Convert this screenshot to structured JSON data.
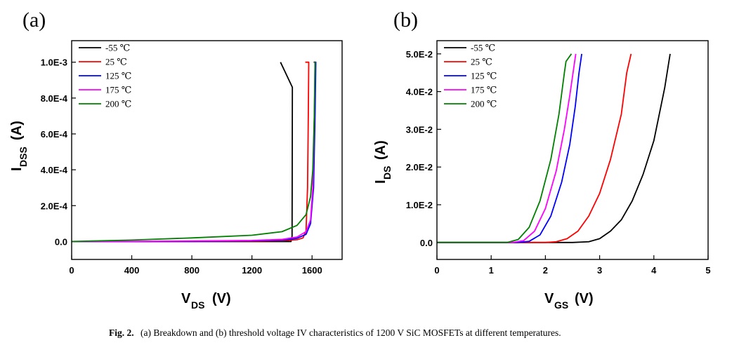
{
  "chart_data": [
    {
      "panel": "(a)",
      "type": "line",
      "xlabel": {
        "main": "V",
        "sub": "DS",
        "unit": "(V)"
      },
      "ylabel": {
        "main": "I",
        "sub": "DSS",
        "unit": "(A)"
      },
      "xlim": [
        0,
        1800
      ],
      "ylim": [
        -0.0001,
        0.00112
      ],
      "x_ticks": [
        0,
        400,
        800,
        1200,
        1600
      ],
      "x_tick_labels": [
        "0",
        "400",
        "800",
        "1200",
        "1600"
      ],
      "y_ticks": [
        0,
        0.0002,
        0.0004,
        0.0006,
        0.0008,
        0.001
      ],
      "y_tick_labels": [
        "0.0",
        "2.0E-4",
        "4.0E-4",
        "6.0E-4",
        "8.0E-4",
        "1.0E-3"
      ],
      "legend_position": "top-left",
      "series": [
        {
          "name": "-55 ℃",
          "color": "#000000",
          "points": [
            [
              0,
              0
            ],
            [
              400,
              0
            ],
            [
              800,
              0
            ],
            [
              1200,
              0
            ],
            [
              1460,
              0
            ],
            [
              1467,
              3e-05
            ],
            [
              1468,
              0.0004
            ],
            [
              1469,
              0.00086
            ],
            [
              1390,
              0.001
            ]
          ]
        },
        {
          "name": "25 ℃",
          "color": "#ff0000",
          "points": [
            [
              0,
              0
            ],
            [
              400,
              0
            ],
            [
              800,
              0
            ],
            [
              1200,
              2e-06
            ],
            [
              1400,
              5e-06
            ],
            [
              1500,
              1e-05
            ],
            [
              1540,
              2e-05
            ],
            [
              1560,
              6e-05
            ],
            [
              1570,
              0.0003
            ],
            [
              1575,
              0.0007
            ],
            [
              1578,
              0.001
            ],
            [
              1555,
              0.001
            ]
          ]
        },
        {
          "name": "125 ℃",
          "color": "#0000ff",
          "points": [
            [
              0,
              0
            ],
            [
              400,
              0
            ],
            [
              800,
              1e-06
            ],
            [
              1200,
              4e-06
            ],
            [
              1400,
              8e-06
            ],
            [
              1500,
              1.8e-05
            ],
            [
              1560,
              4e-05
            ],
            [
              1590,
              0.0001
            ],
            [
              1610,
              0.0003
            ],
            [
              1620,
              0.0007
            ],
            [
              1625,
              0.001
            ],
            [
              1615,
              0.001
            ]
          ]
        },
        {
          "name": "175 ℃",
          "color": "#ff00ff",
          "points": [
            [
              0,
              0
            ],
            [
              400,
              1e-06
            ],
            [
              800,
              3e-06
            ],
            [
              1200,
              6e-06
            ],
            [
              1400,
              1.2e-05
            ],
            [
              1500,
              2.5e-05
            ],
            [
              1560,
              5.5e-05
            ],
            [
              1590,
              0.00012
            ],
            [
              1605,
              0.0003
            ],
            [
              1615,
              0.0007
            ],
            [
              1620,
              0.001
            ],
            [
              1610,
              0.001
            ]
          ]
        },
        {
          "name": "200 ℃",
          "color": "#008000",
          "points": [
            [
              0,
              0
            ],
            [
              400,
              8e-06
            ],
            [
              800,
              2e-05
            ],
            [
              1200,
              3.5e-05
            ],
            [
              1400,
              5.5e-05
            ],
            [
              1500,
              9e-05
            ],
            [
              1560,
              0.00015
            ],
            [
              1590,
              0.00025
            ],
            [
              1605,
              0.0004
            ],
            [
              1615,
              0.0007
            ],
            [
              1620,
              0.001
            ],
            [
              1612,
              0.001
            ]
          ]
        }
      ]
    },
    {
      "panel": "(b)",
      "type": "line",
      "xlabel": {
        "main": "V",
        "sub": "GS",
        "unit": "(V)"
      },
      "ylabel": {
        "main": "I",
        "sub": "DS",
        "unit": "(A)"
      },
      "xlim": [
        0,
        5
      ],
      "ylim": [
        -0.0045,
        0.0535
      ],
      "x_ticks": [
        0,
        1,
        2,
        3,
        4,
        5
      ],
      "x_tick_labels": [
        "0",
        "1",
        "2",
        "3",
        "4",
        "5"
      ],
      "y_ticks": [
        0,
        0.01,
        0.02,
        0.03,
        0.04,
        0.05
      ],
      "y_tick_labels": [
        "0.0",
        "1.0E-2",
        "2.0E-2",
        "3.0E-2",
        "4.0E-2",
        "5.0E-2"
      ],
      "legend_position": "top-left",
      "series": [
        {
          "name": "-55 ℃",
          "color": "#000000",
          "points": [
            [
              0,
              0
            ],
            [
              2.5,
              0
            ],
            [
              2.8,
              0.0002
            ],
            [
              3.0,
              0.001
            ],
            [
              3.2,
              0.003
            ],
            [
              3.4,
              0.006
            ],
            [
              3.6,
              0.011
            ],
            [
              3.8,
              0.018
            ],
            [
              4.0,
              0.027
            ],
            [
              4.2,
              0.041
            ],
            [
              4.3,
              0.05
            ]
          ]
        },
        {
          "name": "25 ℃",
          "color": "#ff0000",
          "points": [
            [
              0,
              0
            ],
            [
              2.0,
              0
            ],
            [
              2.2,
              0.0002
            ],
            [
              2.4,
              0.001
            ],
            [
              2.6,
              0.003
            ],
            [
              2.8,
              0.007
            ],
            [
              3.0,
              0.013
            ],
            [
              3.2,
              0.022
            ],
            [
              3.4,
              0.034
            ],
            [
              3.5,
              0.045
            ],
            [
              3.58,
              0.05
            ]
          ]
        },
        {
          "name": "125 ℃",
          "color": "#0000ff",
          "points": [
            [
              0,
              0
            ],
            [
              1.5,
              0
            ],
            [
              1.7,
              0.0003
            ],
            [
              1.9,
              0.002
            ],
            [
              2.1,
              0.007
            ],
            [
              2.3,
              0.016
            ],
            [
              2.45,
              0.026
            ],
            [
              2.55,
              0.036
            ],
            [
              2.62,
              0.045
            ],
            [
              2.67,
              0.05
            ]
          ]
        },
        {
          "name": "175 ℃",
          "color": "#ff00ff",
          "points": [
            [
              0,
              0
            ],
            [
              1.4,
              0
            ],
            [
              1.6,
              0.0005
            ],
            [
              1.8,
              0.003
            ],
            [
              2.0,
              0.009
            ],
            [
              2.2,
              0.019
            ],
            [
              2.35,
              0.03
            ],
            [
              2.45,
              0.039
            ],
            [
              2.53,
              0.047
            ],
            [
              2.56,
              0.05
            ]
          ]
        },
        {
          "name": "200 ℃",
          "color": "#008000",
          "points": [
            [
              0,
              0
            ],
            [
              1.3,
              0
            ],
            [
              1.5,
              0.0008
            ],
            [
              1.7,
              0.004
            ],
            [
              1.9,
              0.011
            ],
            [
              2.1,
              0.022
            ],
            [
              2.25,
              0.034
            ],
            [
              2.35,
              0.045
            ],
            [
              2.38,
              0.048
            ],
            [
              2.48,
              0.05
            ]
          ]
        }
      ]
    }
  ],
  "caption": {
    "label": "Fig. 2.",
    "text": "(a) Breakdown and (b) threshold voltage IV characteristics of 1200 V SiC MOSFETs at different temperatures."
  }
}
